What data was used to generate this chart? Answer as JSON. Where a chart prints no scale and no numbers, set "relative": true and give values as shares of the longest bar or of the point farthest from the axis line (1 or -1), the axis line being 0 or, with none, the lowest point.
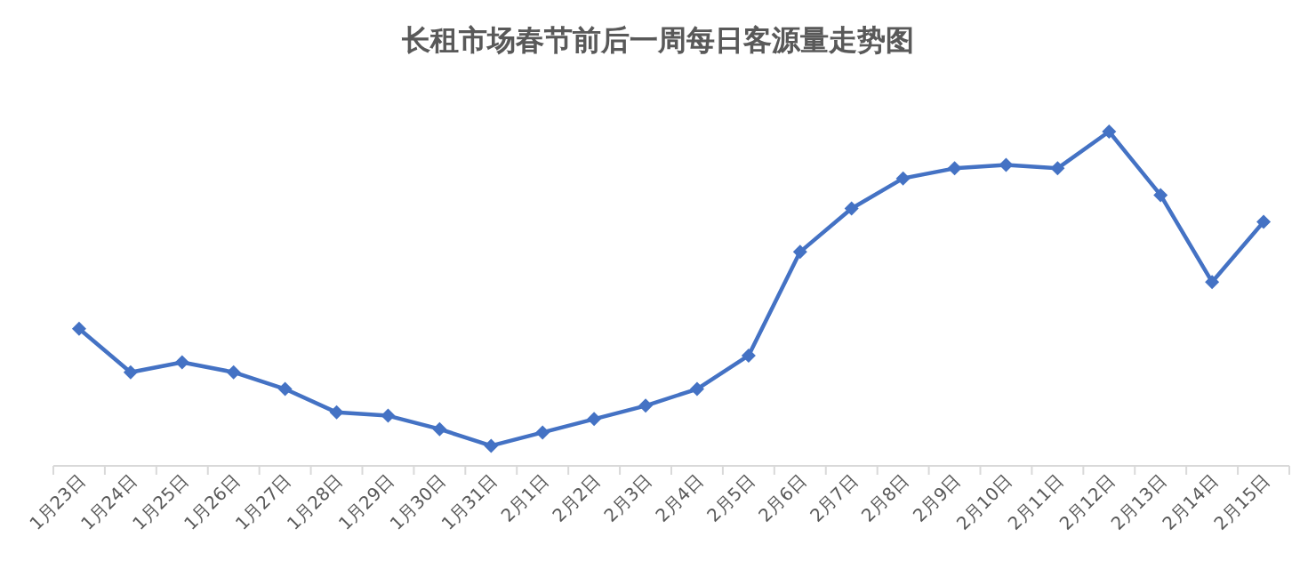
{
  "chart_data": {
    "type": "line",
    "title": "长租市场春节前后一周每日客源量走势图",
    "categories": [
      "1月23日",
      "1月24日",
      "1月25日",
      "1月26日",
      "1月27日",
      "1月28日",
      "1月29日",
      "1月30日",
      "1月31日",
      "2月1日",
      "2月2日",
      "2月3日",
      "2月4日",
      "2月5日",
      "2月6日",
      "2月7日",
      "2月8日",
      "2月9日",
      "2月10日",
      "2月11日",
      "2月12日",
      "2月13日",
      "2月14日",
      "2月15日"
    ],
    "relative": true,
    "marker": "diamond",
    "line_style": "solid",
    "series": [
      {
        "color": "#4472c4",
        "values": [
          0.41,
          0.28,
          0.31,
          0.28,
          0.23,
          0.16,
          0.15,
          0.11,
          0.06,
          0.1,
          0.14,
          0.18,
          0.23,
          0.33,
          0.64,
          0.77,
          0.86,
          0.89,
          0.9,
          0.89,
          1,
          0.81,
          0.55,
          0.73
        ]
      }
    ]
  }
}
